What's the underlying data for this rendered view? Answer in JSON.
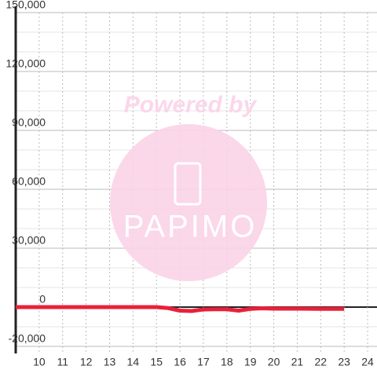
{
  "chart_data": {
    "type": "line",
    "watermark": {
      "line1": "Powered by",
      "line2": "PAPIMO"
    },
    "x": [
      9,
      10,
      11,
      12,
      13,
      14,
      15,
      15.5,
      16,
      16.5,
      17,
      17.5,
      18,
      18.5,
      19,
      19.5,
      20,
      21,
      22,
      23
    ],
    "series": [
      {
        "color": "#e8213a",
        "values": [
          0,
          0,
          0,
          0,
          0,
          0,
          0,
          -500,
          -1800,
          -2000,
          -1200,
          -1100,
          -1100,
          -1800,
          -900,
          -600,
          -800,
          -800,
          -900,
          -900
        ]
      }
    ],
    "xlim": [
      9,
      24.4
    ],
    "xticks": [
      10,
      11,
      12,
      13,
      14,
      15,
      16,
      17,
      18,
      19,
      20,
      21,
      22,
      23,
      24
    ],
    "ylim": [
      -20000,
      150000
    ],
    "yticks": [
      {
        "value": -20000,
        "label": "-20,000"
      },
      0,
      {
        "value": 30000,
        "label": "30,000"
      },
      {
        "value": 60000,
        "label": "60,000"
      },
      {
        "value": 90000,
        "label": "90,000"
      },
      {
        "value": 120000,
        "label": "120,000"
      },
      {
        "value": 150000,
        "label": "150,000"
      }
    ],
    "y_minor_ticks": [
      -10000,
      10000,
      20000,
      40000,
      50000,
      70000,
      80000,
      100000,
      110000,
      130000,
      140000
    ],
    "grid": true
  }
}
